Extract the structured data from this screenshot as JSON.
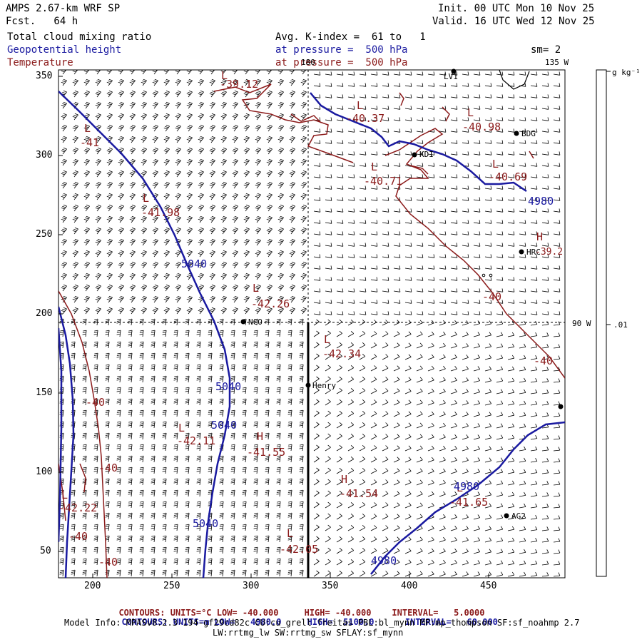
{
  "header": {
    "model": "AMPS 2.67-km WRF SP",
    "fcst": "Fcst.   64 h",
    "init": "Init. 00 UTC Mon 10 Nov 25",
    "valid": "Valid. 16 UTC Wed 12 Nov 25",
    "var1": "Total cloud mixing ratio",
    "var2": "Geopotential height",
    "var3": "Temperature",
    "avg": "Avg. K-index =  61 to   1",
    "press1": "at pressure =  500 hPa",
    "press2": "at pressure =  500 hPa",
    "sm": "sm= 2"
  },
  "map": {
    "meridian_180": "180",
    "meridian_135": "135 W",
    "meridian_90": "90 W",
    "x_ticks": [
      "200",
      "250",
      "300",
      "350",
      "400",
      "450"
    ],
    "y_ticks": [
      "350",
      "300",
      "250",
      "200",
      "150",
      "100",
      "50"
    ],
    "stations": [
      {
        "name": "LV1"
      },
      {
        "name": "BDG"
      },
      {
        "name": "KDI"
      },
      {
        "name": "HRC"
      },
      {
        "name": "NCO"
      },
      {
        "name": "Henry"
      },
      {
        "name": "AG2"
      }
    ],
    "highs_lows": [
      {
        "sym": "L",
        "val": "-39.12"
      },
      {
        "sym": "L",
        "val": "-40.37"
      },
      {
        "sym": "L",
        "val": "-40.98"
      },
      {
        "sym": "L",
        "val": "-40.69"
      },
      {
        "sym": "L",
        "val": "-40.71"
      },
      {
        "sym": "L",
        "val": "-41.98"
      },
      {
        "sym": "H",
        "val": "-39.2"
      },
      {
        "sym": "L",
        "val": "-42.26"
      },
      {
        "sym": "L",
        "val": "-42.34"
      },
      {
        "sym": "L",
        "val": "-42.11"
      },
      {
        "sym": "H",
        "val": "-41.55"
      },
      {
        "sym": "H",
        "val": "-41.54"
      },
      {
        "sym": "L",
        "val": "-41.65"
      },
      {
        "sym": "L",
        "val": "-42.22"
      },
      {
        "sym": "L",
        "val": "-42.05"
      },
      {
        "sym": "L",
        "val": "-41"
      }
    ],
    "contour_labels": {
      "height": [
        "4980",
        "5040",
        "5040",
        "5040",
        "5040",
        "4980",
        "4980"
      ],
      "temp": [
        "-40",
        "-40",
        "-40",
        "-40",
        "-40",
        "-40"
      ]
    }
  },
  "colorbar": {
    "unit": "g kg⁻¹",
    "value": ".01"
  },
  "footer": {
    "contours_temp": {
      "label": "CONTOURS:",
      "units": "UNITS=°C",
      "low": "LOW= -40.000",
      "high": "HIGH= -40.000",
      "interval": "INTERVAL=   5.0000"
    },
    "contours_hgt": {
      "label": "CONTOURS:",
      "units": "UNITS=m",
      "low": "LOW=   4980.0",
      "high": "HIGH=  5100.0",
      "interval": "INTERVAL=   60.000"
    },
    "model_info": "Model Info: MPASv8.2.3-194-gf29cd82c CU:cu_grell_freitas PBL:bl_mynn MP:mp_thompson SF:sf_noahmp 2.7",
    "model_info2": "LW:rrtmg_lw SW:rrtmg_sw SFLAY:sf_mynn"
  },
  "colors": {
    "height": "#1a1aa0",
    "temp": "#8b1a1a"
  }
}
